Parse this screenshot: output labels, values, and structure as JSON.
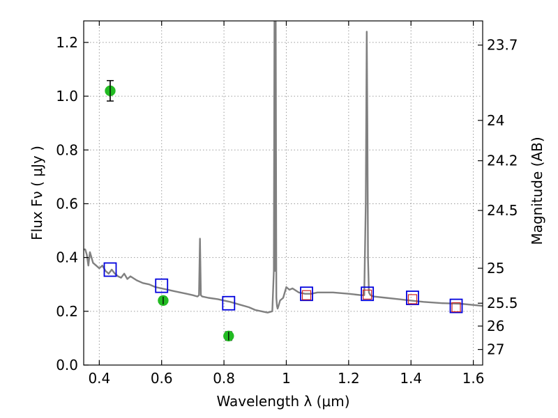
{
  "chart_data": {
    "type": "scatter",
    "xlabel": "Wavelength  λ (μm)",
    "ylabel": "Flux  Fν  ( μJy )",
    "ylabel_right": "Magnitude (AB)",
    "xlim": [
      0.35,
      1.63
    ],
    "ylim": [
      0.0,
      1.28
    ],
    "grid": true,
    "x_ticks": [
      0.4,
      0.6,
      0.8,
      1.0,
      1.2,
      1.4,
      1.6
    ],
    "x_tick_labels": [
      "0.4",
      "0.6",
      "0.8",
      "1",
      "1.2",
      "1.4",
      "1.6"
    ],
    "y_ticks": [
      0.0,
      0.2,
      0.4,
      0.6,
      0.8,
      1.0,
      1.2
    ],
    "y_tick_labels": [
      "0.0",
      "0.2",
      "0.4",
      "0.6",
      "0.8",
      "1.0",
      "1.2"
    ],
    "right_ticks": [
      {
        "label": "23.7",
        "flux": 1.19
      },
      {
        "label": "24",
        "flux": 0.91
      },
      {
        "label": "24.2",
        "flux": 0.76
      },
      {
        "label": "24.5",
        "flux": 0.575
      },
      {
        "label": "25",
        "flux": 0.36
      },
      {
        "label": "25.5",
        "flux": 0.23
      },
      {
        "label": "26",
        "flux": 0.145
      },
      {
        "label": "27",
        "flux": 0.058
      }
    ],
    "series": [
      {
        "kind": "line",
        "color": "#808080",
        "x": [
          0.35,
          0.355,
          0.36,
          0.365,
          0.37,
          0.375,
          0.38,
          0.39,
          0.4,
          0.41,
          0.42,
          0.43,
          0.44,
          0.45,
          0.46,
          0.47,
          0.48,
          0.49,
          0.5,
          0.52,
          0.54,
          0.56,
          0.58,
          0.6,
          0.62,
          0.64,
          0.66,
          0.68,
          0.7,
          0.715,
          0.72,
          0.723,
          0.726,
          0.73,
          0.75,
          0.78,
          0.8,
          0.82,
          0.85,
          0.88,
          0.9,
          0.92,
          0.94,
          0.955,
          0.96,
          0.962,
          0.964,
          0.966,
          0.968,
          0.97,
          0.972,
          0.975,
          0.98,
          0.99,
          1.0,
          1.01,
          1.02,
          1.04,
          1.06,
          1.08,
          1.1,
          1.15,
          1.2,
          1.24,
          1.25,
          1.255,
          1.258,
          1.26,
          1.262,
          1.265,
          1.27,
          1.28,
          1.32,
          1.36,
          1.4,
          1.44,
          1.5,
          1.56,
          1.63
        ],
        "y": [
          0.43,
          0.43,
          0.41,
          0.37,
          0.42,
          0.4,
          0.38,
          0.37,
          0.36,
          0.37,
          0.35,
          0.34,
          0.355,
          0.34,
          0.33,
          0.325,
          0.34,
          0.32,
          0.33,
          0.315,
          0.305,
          0.3,
          0.29,
          0.285,
          0.28,
          0.275,
          0.27,
          0.265,
          0.26,
          0.255,
          0.26,
          0.47,
          0.26,
          0.255,
          0.25,
          0.245,
          0.24,
          0.235,
          0.225,
          0.215,
          0.205,
          0.2,
          0.195,
          0.2,
          0.35,
          1.28,
          0.35,
          1.28,
          0.25,
          0.22,
          0.21,
          0.22,
          0.24,
          0.25,
          0.29,
          0.28,
          0.285,
          0.27,
          0.265,
          0.265,
          0.27,
          0.27,
          0.265,
          0.26,
          0.26,
          0.6,
          1.24,
          0.9,
          0.4,
          0.27,
          0.26,
          0.255,
          0.25,
          0.245,
          0.24,
          0.235,
          0.23,
          0.228,
          0.22
        ]
      },
      {
        "kind": "open-square",
        "color": "#0000dd",
        "x": [
          0.435,
          0.6,
          0.815,
          1.065,
          1.26,
          1.405,
          1.545
        ],
        "y": [
          0.355,
          0.295,
          0.23,
          0.265,
          0.265,
          0.25,
          0.22
        ]
      },
      {
        "kind": "small-red-square",
        "color": "#cc2222",
        "x": [
          1.065,
          1.26,
          1.405,
          1.545
        ],
        "y": [
          0.26,
          0.262,
          0.245,
          0.215
        ]
      },
      {
        "kind": "point-errorbar",
        "color": "#22bb22",
        "x": [
          0.435,
          0.605,
          0.815
        ],
        "y": [
          1.02,
          0.24,
          0.108
        ],
        "yerr": [
          0.038,
          0.014,
          0.016
        ]
      }
    ]
  }
}
